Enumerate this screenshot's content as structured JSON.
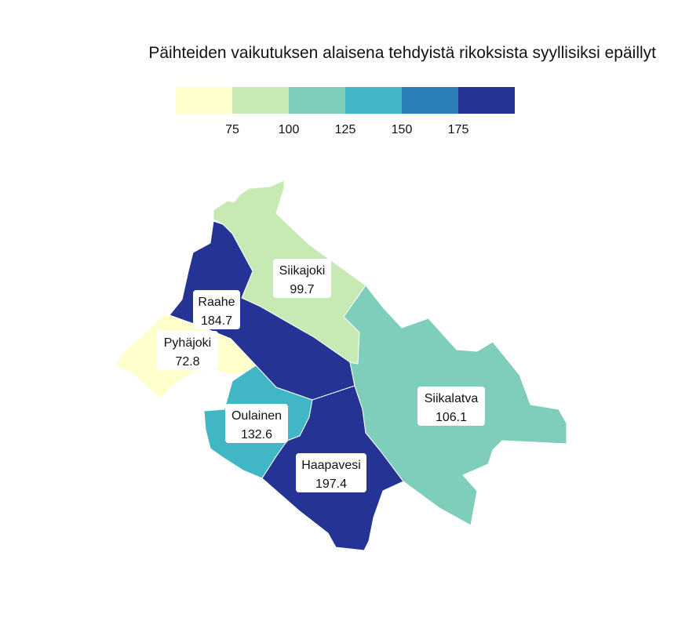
{
  "title": "Päihteiden vaikutuksen alaisena tehdyistä rikoksista syyllisiksi epäillyt",
  "legend": {
    "colors": [
      "#ffffcc",
      "#c7e9b4",
      "#7fcdbb",
      "#41b6c4",
      "#2c7fb8",
      "#253494"
    ],
    "ticks": [
      "75",
      "100",
      "125",
      "150",
      "175"
    ]
  },
  "regions": [
    {
      "name": "Siikajoki",
      "value": "99.7",
      "color": "#c7e9b4"
    },
    {
      "name": "Raahe",
      "value": "184.7",
      "color": "#253494"
    },
    {
      "name": "Pyhäjoki",
      "value": "72.8",
      "color": "#ffffcc"
    },
    {
      "name": "Oulainen",
      "value": "132.6",
      "color": "#41b6c4"
    },
    {
      "name": "Haapavesi",
      "value": "197.4",
      "color": "#253494"
    },
    {
      "name": "Siikalatva",
      "value": "106.1",
      "color": "#7fcdbb"
    }
  ]
}
